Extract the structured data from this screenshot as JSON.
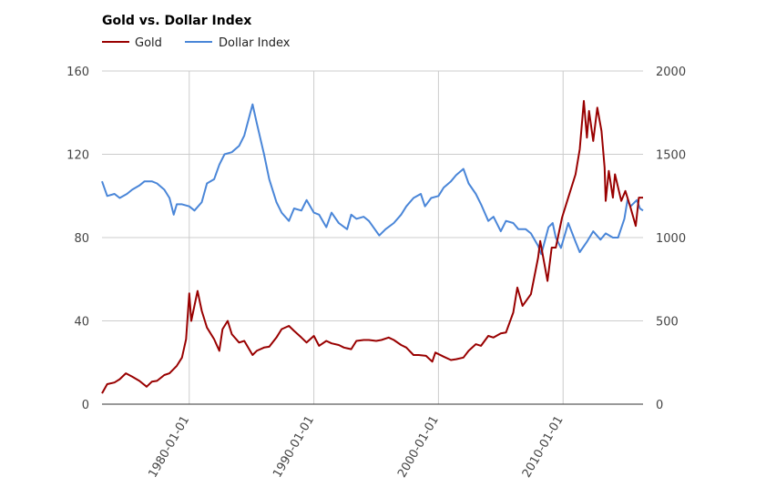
{
  "chart_data": {
    "type": "line",
    "title": "Gold vs. Dollar Index",
    "legend_position": "top-left",
    "grid": true,
    "x_range": [
      "1973-01-01",
      "2016-06-01"
    ],
    "x_ticks": [
      "1980-01-01",
      "1990-01-01",
      "2000-01-01",
      "2010-01-01"
    ],
    "y_left": {
      "range": [
        0,
        160
      ],
      "ticks": [
        "0",
        "40",
        "80",
        "120",
        "160"
      ]
    },
    "y_right": {
      "range": [
        0,
        2000
      ],
      "ticks": [
        "0",
        "500",
        "1000",
        "1500",
        "2000"
      ]
    },
    "series": [
      {
        "name": "Dollar Index",
        "axis": "left",
        "color": "#4a86d8",
        "points": [
          [
            "1973-01-01",
            107
          ],
          [
            "1973-06-01",
            100
          ],
          [
            "1974-01-01",
            101
          ],
          [
            "1974-06-01",
            99
          ],
          [
            "1975-01-01",
            101
          ],
          [
            "1975-06-01",
            103
          ],
          [
            "1976-01-01",
            105
          ],
          [
            "1976-06-01",
            107
          ],
          [
            "1977-01-01",
            107
          ],
          [
            "1977-06-01",
            106
          ],
          [
            "1978-01-01",
            103
          ],
          [
            "1978-06-01",
            99
          ],
          [
            "1978-10-01",
            91
          ],
          [
            "1979-01-01",
            96
          ],
          [
            "1979-06-01",
            96
          ],
          [
            "1980-01-01",
            95
          ],
          [
            "1980-06-01",
            93
          ],
          [
            "1981-01-01",
            97
          ],
          [
            "1981-06-01",
            106
          ],
          [
            "1982-01-01",
            108
          ],
          [
            "1982-06-01",
            115
          ],
          [
            "1982-11-01",
            120
          ],
          [
            "1983-06-01",
            121
          ],
          [
            "1984-01-01",
            124
          ],
          [
            "1984-06-01",
            129
          ],
          [
            "1985-02-01",
            144
          ],
          [
            "1985-06-01",
            135
          ],
          [
            "1986-01-01",
            120
          ],
          [
            "1986-06-01",
            108
          ],
          [
            "1987-01-01",
            97
          ],
          [
            "1987-06-01",
            92
          ],
          [
            "1988-01-01",
            88
          ],
          [
            "1988-06-01",
            94
          ],
          [
            "1989-01-01",
            93
          ],
          [
            "1989-06-01",
            98
          ],
          [
            "1990-01-01",
            92
          ],
          [
            "1990-06-01",
            91
          ],
          [
            "1991-01-01",
            85
          ],
          [
            "1991-06-01",
            92
          ],
          [
            "1992-01-01",
            87
          ],
          [
            "1992-09-01",
            84
          ],
          [
            "1993-01-01",
            91
          ],
          [
            "1993-06-01",
            89
          ],
          [
            "1994-01-01",
            90
          ],
          [
            "1994-06-01",
            88
          ],
          [
            "1995-04-01",
            81
          ],
          [
            "1995-10-01",
            84
          ],
          [
            "1996-06-01",
            87
          ],
          [
            "1997-01-01",
            91
          ],
          [
            "1997-06-01",
            95
          ],
          [
            "1998-01-01",
            99
          ],
          [
            "1998-08-01",
            101
          ],
          [
            "1998-12-01",
            95
          ],
          [
            "1999-06-01",
            99
          ],
          [
            "2000-01-01",
            100
          ],
          [
            "2000-06-01",
            104
          ],
          [
            "2001-01-01",
            107
          ],
          [
            "2001-06-01",
            110
          ],
          [
            "2002-01-01",
            113
          ],
          [
            "2002-06-01",
            106
          ],
          [
            "2003-01-01",
            101
          ],
          [
            "2003-06-01",
            96
          ],
          [
            "2004-01-01",
            88
          ],
          [
            "2004-06-01",
            90
          ],
          [
            "2005-01-01",
            83
          ],
          [
            "2005-06-01",
            88
          ],
          [
            "2006-01-01",
            87
          ],
          [
            "2006-06-01",
            84
          ],
          [
            "2007-01-01",
            84
          ],
          [
            "2007-06-01",
            82
          ],
          [
            "2008-01-01",
            76
          ],
          [
            "2008-04-01",
            72
          ],
          [
            "2008-11-01",
            85
          ],
          [
            "2009-03-01",
            87
          ],
          [
            "2009-06-01",
            80
          ],
          [
            "2009-11-01",
            75
          ],
          [
            "2010-06-01",
            87
          ],
          [
            "2011-01-01",
            78
          ],
          [
            "2011-05-01",
            73
          ],
          [
            "2011-12-01",
            78
          ],
          [
            "2012-06-01",
            83
          ],
          [
            "2013-01-01",
            79
          ],
          [
            "2013-06-01",
            82
          ],
          [
            "2014-01-01",
            80
          ],
          [
            "2014-06-01",
            80
          ],
          [
            "2014-12-01",
            89
          ],
          [
            "2015-03-01",
            98
          ],
          [
            "2015-06-01",
            95
          ],
          [
            "2015-12-01",
            98
          ],
          [
            "2016-03-01",
            94
          ],
          [
            "2016-06-01",
            93
          ]
        ]
      },
      {
        "name": "Gold",
        "axis": "right",
        "color": "#990000",
        "points": [
          [
            "1973-01-01",
            65
          ],
          [
            "1973-06-01",
            120
          ],
          [
            "1974-01-01",
            130
          ],
          [
            "1974-06-01",
            150
          ],
          [
            "1974-12-01",
            185
          ],
          [
            "1975-06-01",
            165
          ],
          [
            "1976-01-01",
            140
          ],
          [
            "1976-08-01",
            105
          ],
          [
            "1977-01-01",
            135
          ],
          [
            "1977-06-01",
            140
          ],
          [
            "1978-01-01",
            175
          ],
          [
            "1978-06-01",
            185
          ],
          [
            "1979-01-01",
            230
          ],
          [
            "1979-06-01",
            280
          ],
          [
            "1979-10-01",
            390
          ],
          [
            "1980-01-01",
            665
          ],
          [
            "1980-03-01",
            500
          ],
          [
            "1980-09-01",
            680
          ],
          [
            "1981-01-01",
            560
          ],
          [
            "1981-06-01",
            460
          ],
          [
            "1982-01-01",
            390
          ],
          [
            "1982-06-01",
            320
          ],
          [
            "1982-09-01",
            450
          ],
          [
            "1983-02-01",
            500
          ],
          [
            "1983-06-01",
            420
          ],
          [
            "1984-01-01",
            370
          ],
          [
            "1984-06-01",
            380
          ],
          [
            "1985-02-01",
            295
          ],
          [
            "1985-06-01",
            320
          ],
          [
            "1986-01-01",
            340
          ],
          [
            "1986-06-01",
            345
          ],
          [
            "1987-01-01",
            400
          ],
          [
            "1987-06-01",
            450
          ],
          [
            "1988-01-01",
            470
          ],
          [
            "1988-06-01",
            440
          ],
          [
            "1989-01-01",
            400
          ],
          [
            "1989-06-01",
            370
          ],
          [
            "1990-01-01",
            410
          ],
          [
            "1990-06-01",
            350
          ],
          [
            "1991-01-01",
            380
          ],
          [
            "1991-06-01",
            365
          ],
          [
            "1992-01-01",
            355
          ],
          [
            "1992-06-01",
            340
          ],
          [
            "1993-01-01",
            330
          ],
          [
            "1993-06-01",
            380
          ],
          [
            "1994-01-01",
            385
          ],
          [
            "1994-06-01",
            385
          ],
          [
            "1995-01-01",
            380
          ],
          [
            "1995-06-01",
            385
          ],
          [
            "1996-01-01",
            400
          ],
          [
            "1996-06-01",
            385
          ],
          [
            "1997-01-01",
            355
          ],
          [
            "1997-06-01",
            340
          ],
          [
            "1998-01-01",
            295
          ],
          [
            "1998-06-01",
            295
          ],
          [
            "1999-01-01",
            290
          ],
          [
            "1999-07-01",
            255
          ],
          [
            "1999-10-01",
            310
          ],
          [
            "2000-06-01",
            285
          ],
          [
            "2001-01-01",
            265
          ],
          [
            "2001-06-01",
            270
          ],
          [
            "2002-01-01",
            280
          ],
          [
            "2002-06-01",
            320
          ],
          [
            "2003-01-01",
            360
          ],
          [
            "2003-06-01",
            350
          ],
          [
            "2004-01-01",
            410
          ],
          [
            "2004-06-01",
            400
          ],
          [
            "2005-01-01",
            425
          ],
          [
            "2005-06-01",
            430
          ],
          [
            "2006-01-01",
            550
          ],
          [
            "2006-05-01",
            700
          ],
          [
            "2006-10-01",
            590
          ],
          [
            "2007-06-01",
            660
          ],
          [
            "2008-01-01",
            880
          ],
          [
            "2008-03-01",
            980
          ],
          [
            "2008-10-01",
            740
          ],
          [
            "2009-02-01",
            940
          ],
          [
            "2009-06-01",
            940
          ],
          [
            "2009-12-01",
            1120
          ],
          [
            "2010-06-01",
            1240
          ],
          [
            "2011-01-01",
            1380
          ],
          [
            "2011-05-01",
            1530
          ],
          [
            "2011-09-01",
            1820
          ],
          [
            "2011-12-01",
            1600
          ],
          [
            "2012-02-01",
            1760
          ],
          [
            "2012-06-01",
            1580
          ],
          [
            "2012-10-01",
            1780
          ],
          [
            "2013-02-01",
            1640
          ],
          [
            "2013-05-01",
            1420
          ],
          [
            "2013-06-01",
            1220
          ],
          [
            "2013-09-01",
            1400
          ],
          [
            "2014-01-01",
            1240
          ],
          [
            "2014-03-01",
            1380
          ],
          [
            "2014-09-01",
            1220
          ],
          [
            "2015-01-01",
            1280
          ],
          [
            "2015-06-01",
            1180
          ],
          [
            "2015-11-01",
            1070
          ],
          [
            "2016-02-01",
            1240
          ],
          [
            "2016-06-01",
            1240
          ]
        ]
      }
    ]
  }
}
